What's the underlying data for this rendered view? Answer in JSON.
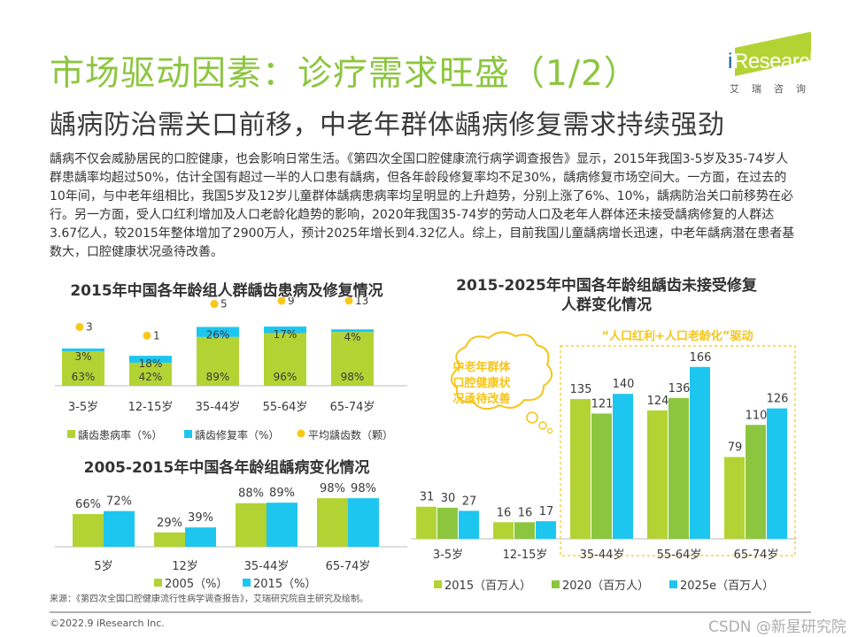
{
  "header": {
    "title": "市场驱动因素：诊疗需求旺盛（1/2）",
    "subtitle": "龋病防治需关口前移，中老年群体龋病修复需求持续强劲",
    "logo": {
      "text_i": "i",
      "text": "Research",
      "cn": "艾瑞咨询"
    }
  },
  "colors": {
    "title_green": "#8cc63f",
    "bar_lightgreen": "#b3d334",
    "bar_green": "#8cc63f",
    "bar_blue": "#1dc6ee",
    "dot_yellow": "#f9c718",
    "annotation_yellow": "#f5c518"
  },
  "body_text": "龋病不仅会威胁居民的口腔健康，也会影响日常生活。《第四次全国口腔健康流行病学调查报告》显示，2015年我国3-5岁及35-74岁人群患龋率均超过50%，估计全国有超过一半的人口患有龋病，但各年龄段修复率均不足30%，龋病修复市场空间大。一方面，在过去的10年间，与中老年组相比，我国5岁及12岁儿童群体龋病患病率均呈明显的上升趋势，分别上涨了6%、10%，龋病防治关口前移势在必行。另一方面，受人口红利增加及人口老龄化趋势的影响，2020年我国35-74岁的劳动人口及老年人群体还未接受龋病修复的人群达3.67亿人，较2015年整体增加了2900万人，预计2025年增长到4.32亿人。综上，目前我国儿童龋病增长迅速，中老年龋病潜在患者基数大，口腔健康状况亟待改善。",
  "chart_data": [
    {
      "type": "bar",
      "stacked": true,
      "title": "2015年中国各年龄组人群龋齿患病及修复情况",
      "categories": [
        "3-5岁",
        "12-15岁",
        "35-44岁",
        "55-64岁",
        "65-74岁"
      ],
      "series": [
        {
          "name": "龋齿患病率（%）",
          "values": [
            63,
            42,
            89,
            96,
            98
          ],
          "labels": [
            "63%",
            "42%",
            "89%",
            "96%",
            "98%"
          ]
        },
        {
          "name": "龋齿修复率（%）",
          "values": [
            3,
            18,
            26,
            17,
            4
          ],
          "labels": [
            "3%",
            "18%",
            "26%",
            "17%",
            "4%"
          ]
        },
        {
          "name": "平均龋齿数（颗）",
          "kind": "dot",
          "values": [
            3,
            1,
            5,
            9,
            13
          ],
          "labels": [
            "3",
            "1",
            "5",
            "9",
            "13"
          ]
        }
      ],
      "legend": "bottom",
      "grid": false
    },
    {
      "type": "bar",
      "title": "2005-2015年中国各年龄组龋病变化情况",
      "categories": [
        "5岁",
        "12岁",
        "35-44岁",
        "65-74岁"
      ],
      "series": [
        {
          "name": "2005（%）",
          "values": [
            66,
            29,
            88,
            98
          ],
          "labels": [
            "66%",
            "29%",
            "88%",
            "98%"
          ]
        },
        {
          "name": "2015（%）",
          "values": [
            72,
            39,
            89,
            98
          ],
          "labels": [
            "72%",
            "39%",
            "89%",
            "98%"
          ]
        }
      ],
      "legend": "bottom",
      "grid": false
    },
    {
      "type": "bar",
      "title": "2015-2025年中国各年龄组龋齿未接受修复人群变化情况",
      "title_lines": [
        "2015-2025年中国各年龄组龋齿未接受修复",
        "人群变化情况"
      ],
      "categories": [
        "3-5岁",
        "12-15岁",
        "35-44岁",
        "55-64岁",
        "65-74岁"
      ],
      "series": [
        {
          "name": "2015（百万人）",
          "values": [
            31,
            16,
            135,
            124,
            79
          ]
        },
        {
          "name": "2020（百万人）",
          "values": [
            30,
            16,
            121,
            136,
            110
          ]
        },
        {
          "name": "2025e（百万人）",
          "values": [
            27,
            17,
            140,
            166,
            126
          ]
        }
      ],
      "annotations": {
        "driver": "“人口红利+人口老龄化”驱动",
        "bubble_lines": [
          "中老年群体",
          "口腔健康状",
          "况亟待改善"
        ]
      },
      "legend": "bottom",
      "grid": false
    }
  ],
  "footer": {
    "source": "来源：《第四次全国口腔健康流行性病学调查报告》，艾瑞研究院自主研究及绘制。",
    "copyright": "©2022.9 iResearch Inc.",
    "watermark": "CSDN @新星研究院"
  }
}
